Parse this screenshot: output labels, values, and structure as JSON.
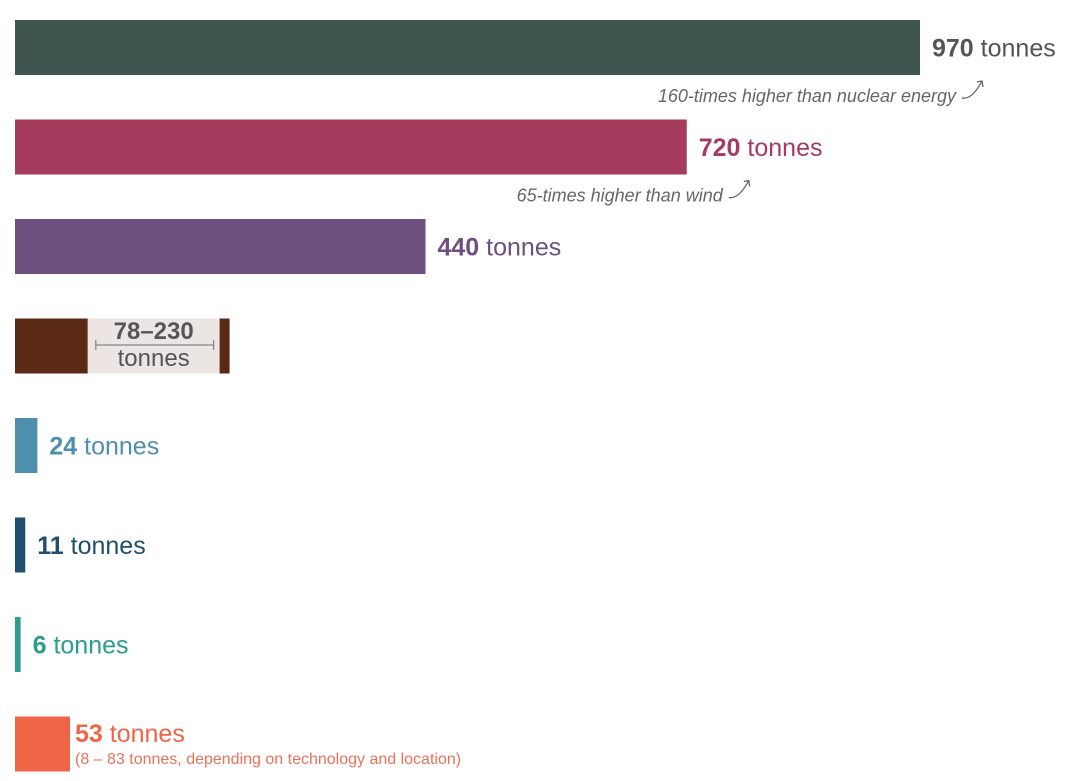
{
  "chart_data": {
    "type": "bar",
    "orientation": "horizontal",
    "unit": "tonnes",
    "xlim": [
      0,
      970
    ],
    "grid": false,
    "legend": "none",
    "bars": [
      {
        "value": 970,
        "value_text": "970",
        "unit_text": "tonnes",
        "color": "#3f5550",
        "note": "160-times higher than nuclear energy"
      },
      {
        "value": 720,
        "value_text": "720",
        "unit_text": "tonnes",
        "color": "#a53c5e",
        "label_color": "#a53c5e",
        "note": "65-times higher than wind"
      },
      {
        "value": 440,
        "value_text": "440",
        "unit_text": "tonnes",
        "color": "#6f4f7f",
        "label_color": "#6f4f7f"
      },
      {
        "value_min": 78,
        "value_max": 230,
        "range_text": "78–230",
        "unit_text": "tonnes",
        "color": "#5b2a16"
      },
      {
        "value": 24,
        "value_text": "24",
        "unit_text": "tonnes",
        "color": "#4e8fad",
        "label_color": "#4e8fad"
      },
      {
        "value": 11,
        "value_text": "11",
        "unit_text": "tonnes",
        "color": "#1f4f6e",
        "label_color": "#1f4f6e"
      },
      {
        "value": 6,
        "value_text": "6",
        "unit_text": "tonnes",
        "color": "#2a9d8f",
        "label_color": "#2a9d8f"
      },
      {
        "value": 53,
        "value_text": "53",
        "unit_text": "tonnes",
        "color": "#ef6548",
        "label_color": "#ef6548",
        "sub_note": "(8 – 83 tonnes, depending on technology and location)"
      }
    ]
  }
}
